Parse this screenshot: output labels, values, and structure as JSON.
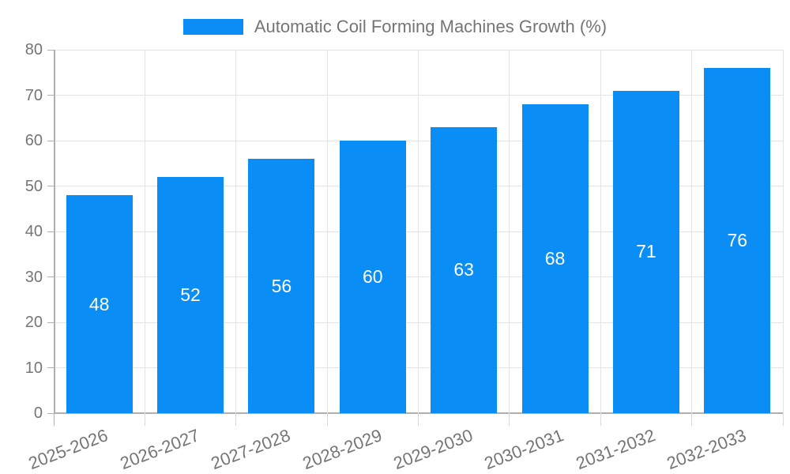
{
  "chart_data": {
    "type": "bar",
    "title": "",
    "series_name": "Automatic Coil Forming Machines Growth (%)",
    "categories": [
      "2025-2026",
      "2026-2027",
      "2027-2028",
      "2028-2029",
      "2029-2030",
      "2030-2031",
      "2031-2032",
      "2032-2033"
    ],
    "values": [
      48,
      52,
      56,
      60,
      63,
      68,
      71,
      76
    ],
    "xlabel": "",
    "ylabel": "",
    "ylim": [
      0,
      80
    ],
    "ytick_step": 10,
    "yticks": [
      0,
      10,
      20,
      30,
      40,
      50,
      60,
      70,
      80
    ],
    "grid": true,
    "legend_position": "top-center",
    "colors": {
      "bar": "#0a8df5",
      "value_label": "#ffffff",
      "axis_text": "#757575",
      "grid_line": "#e4e4e4",
      "axis_line": "#b0b0b0",
      "tick_below_axis": "#d9d9d9",
      "background": "#ffffff"
    }
  }
}
